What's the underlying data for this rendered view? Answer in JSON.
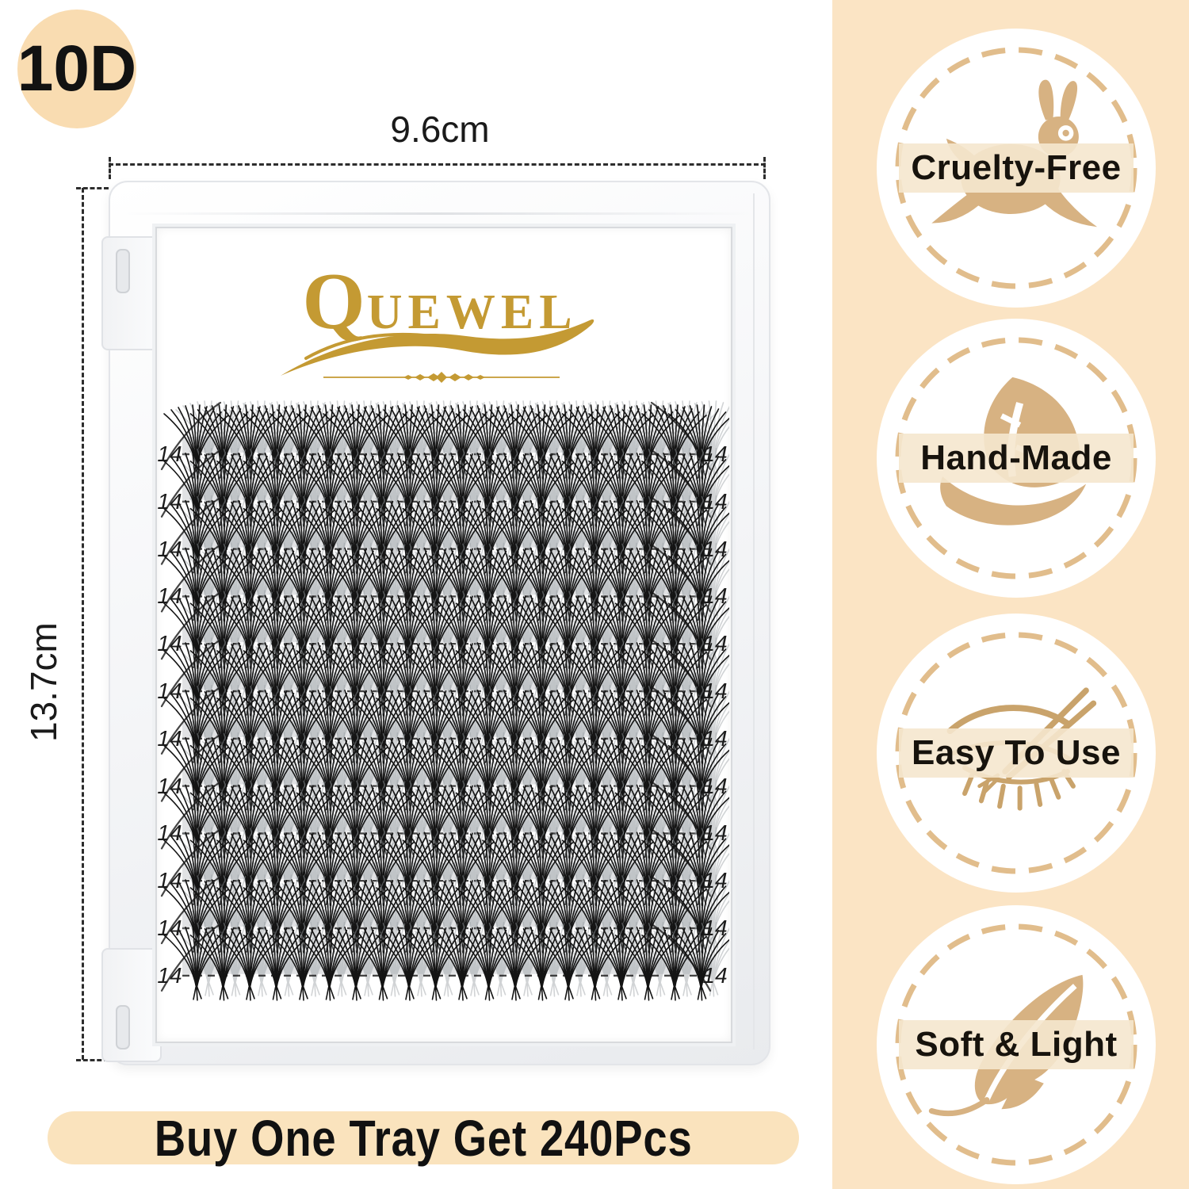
{
  "product_badge": {
    "label": "10D"
  },
  "dimensions": {
    "width": "9.6cm",
    "height": "13.7cm"
  },
  "brand": {
    "logo_text": "QUEWEL"
  },
  "tray": {
    "fans_per_row": 20,
    "rows": [
      {
        "left": "14",
        "right": "14"
      },
      {
        "left": "14",
        "right": "14"
      },
      {
        "left": "14",
        "right": "14"
      },
      {
        "left": "14",
        "right": "14"
      },
      {
        "left": "14",
        "right": "14"
      },
      {
        "left": "14",
        "right": "14"
      },
      {
        "left": "14",
        "right": "14"
      },
      {
        "left": "14",
        "right": "14"
      },
      {
        "left": "14",
        "right": "14"
      },
      {
        "left": "14",
        "right": "14"
      },
      {
        "left": "14",
        "right": "14"
      },
      {
        "left": "14",
        "right": "14"
      }
    ]
  },
  "sidebar": {
    "badges": [
      {
        "label": "Cruelty-Free",
        "icon": "rabbit-icon"
      },
      {
        "label": "Hand-Made",
        "icon": "leaf-hand-icon"
      },
      {
        "label": "Easy To Use",
        "icon": "eye-tweezers-icon"
      },
      {
        "label": "Soft & Light",
        "icon": "feather-icon"
      }
    ]
  },
  "banner": {
    "text": "Buy One Tray Get 240Pcs"
  },
  "colors": {
    "sidebar_peach": "#fbe4c4",
    "bubble_peach": "#f9dcb1",
    "banner_peach": "#fae3bd",
    "badge_ring_tan": "#e1bd8c",
    "icon_tan": "#d7b282",
    "brand_gold": "#c49a33",
    "lash_black": "#141414"
  }
}
